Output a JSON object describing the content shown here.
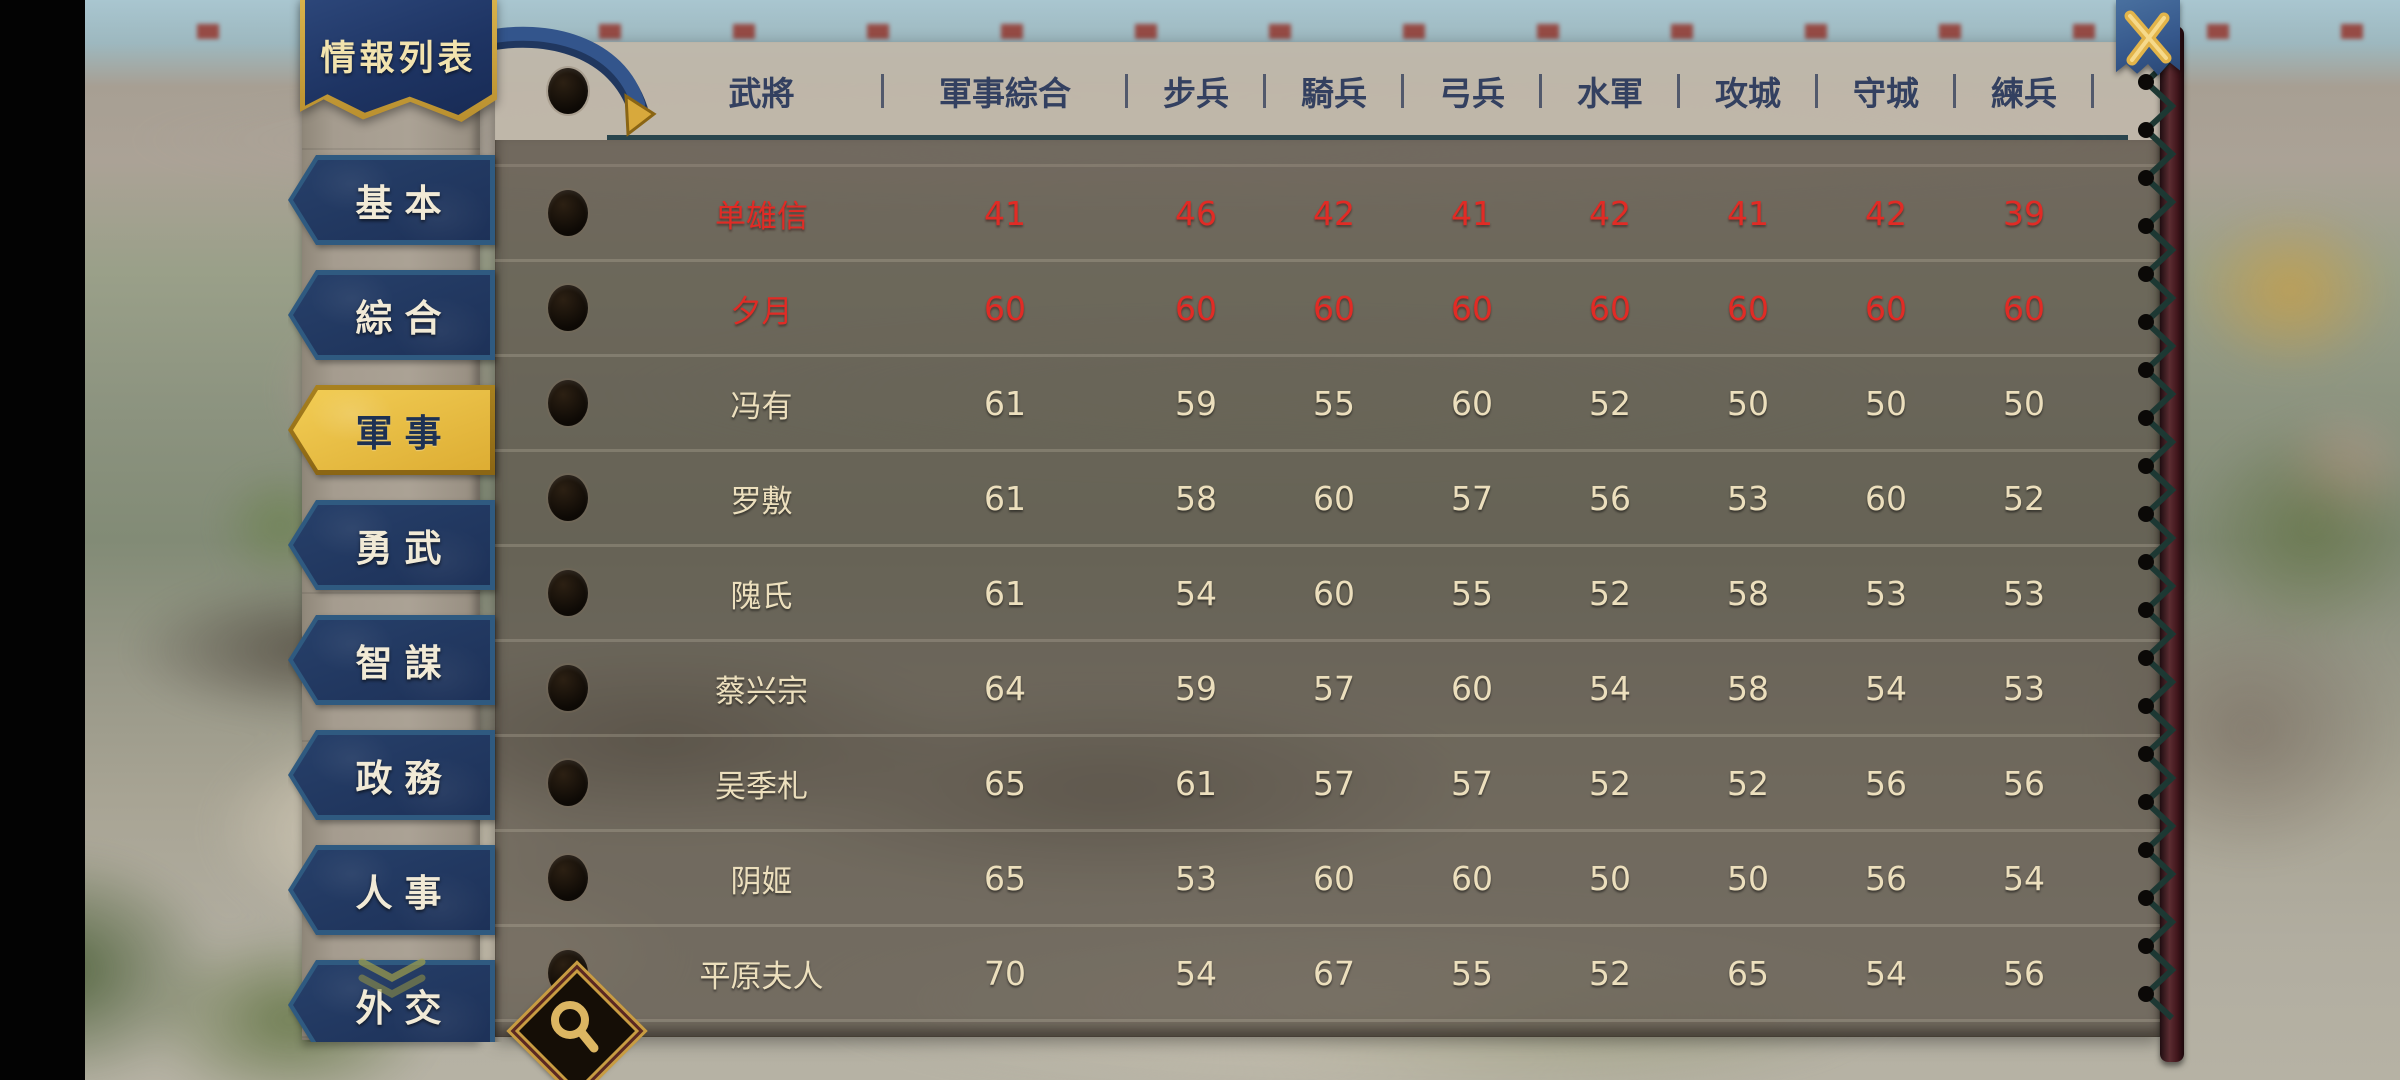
{
  "panel": {
    "title": "情報列表"
  },
  "sidebar": {
    "tabs": [
      {
        "key": "basic",
        "label": "基本",
        "active": false
      },
      {
        "key": "overall",
        "label": "綜合",
        "active": false
      },
      {
        "key": "military",
        "label": "軍事",
        "active": true
      },
      {
        "key": "valor",
        "label": "勇武",
        "active": false
      },
      {
        "key": "wisdom",
        "label": "智謀",
        "active": false
      },
      {
        "key": "politics",
        "label": "政務",
        "active": false
      },
      {
        "key": "personnel",
        "label": "人事",
        "active": false
      },
      {
        "key": "diplomacy",
        "label": "外交",
        "active": false
      }
    ]
  },
  "table": {
    "columns": [
      "武將",
      "軍事綜合",
      "步兵",
      "騎兵",
      "弓兵",
      "水軍",
      "攻城",
      "守城",
      "練兵"
    ],
    "rows": [
      {
        "name": "单雄信",
        "highlight": true,
        "values": [
          41,
          46,
          42,
          41,
          42,
          41,
          42,
          39
        ]
      },
      {
        "name": "夕月",
        "highlight": true,
        "values": [
          60,
          60,
          60,
          60,
          60,
          60,
          60,
          60
        ]
      },
      {
        "name": "冯有",
        "highlight": false,
        "values": [
          61,
          59,
          55,
          60,
          52,
          50,
          50,
          50
        ]
      },
      {
        "name": "罗敷",
        "highlight": false,
        "values": [
          61,
          58,
          60,
          57,
          56,
          53,
          60,
          52
        ]
      },
      {
        "name": "隗氏",
        "highlight": false,
        "values": [
          61,
          54,
          60,
          55,
          52,
          58,
          53,
          53
        ]
      },
      {
        "name": "蔡兴宗",
        "highlight": false,
        "values": [
          64,
          59,
          57,
          60,
          54,
          58,
          54,
          53
        ]
      },
      {
        "name": "吴季札",
        "highlight": false,
        "values": [
          65,
          61,
          57,
          57,
          52,
          52,
          56,
          56
        ]
      },
      {
        "name": "阴姬",
        "highlight": false,
        "values": [
          65,
          53,
          60,
          60,
          50,
          50,
          56,
          54
        ]
      },
      {
        "name": "平原夫人",
        "highlight": false,
        "values": [
          70,
          54,
          67,
          55,
          52,
          65,
          54,
          56
        ]
      }
    ]
  },
  "icons": {
    "close": "close-icon",
    "search": "search-icon",
    "scroll_down": "scroll-down-icon",
    "portrait": "portrait-circle-icon"
  },
  "colors": {
    "highlight_red": "#e12b25",
    "text_cream": "#ecdfbd",
    "tab_navy": "#22385e",
    "tab_active_gold": "#eec84e",
    "header_text": "#334060",
    "banner_blue": "#1e3463"
  }
}
